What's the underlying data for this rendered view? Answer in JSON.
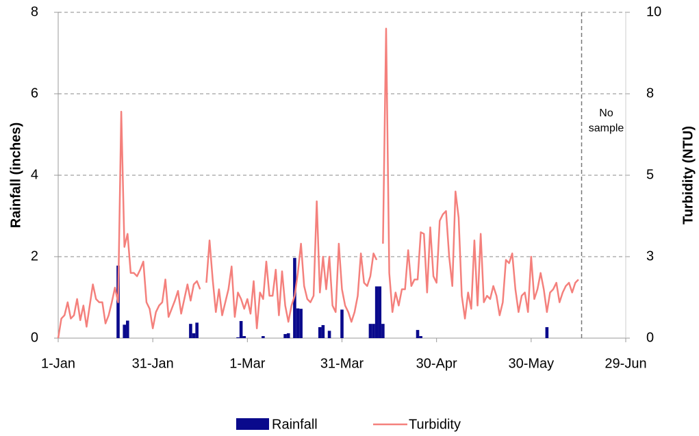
{
  "chart_data": {
    "type": "combo",
    "y_label": "Rainfall (inches)",
    "y2_label": "Turbidity (NTU)",
    "xlim": [
      0,
      180
    ],
    "xticks": [
      {
        "value": 0,
        "label": "1-Jan"
      },
      {
        "value": 30,
        "label": "31-Jan"
      },
      {
        "value": 60,
        "label": "1-Mar"
      },
      {
        "value": 90,
        "label": "31-Mar"
      },
      {
        "value": 120,
        "label": "30-Apr"
      },
      {
        "value": 150,
        "label": "30-May"
      },
      {
        "value": 180,
        "label": "29-Jun"
      }
    ],
    "ylim": [
      0,
      8
    ],
    "yticks": [
      0,
      2,
      4,
      6,
      8
    ],
    "y2lim": [
      0,
      10
    ],
    "y2ticks": [
      0,
      {
        "value": 2.5,
        "label": "3"
      },
      5,
      {
        "value": 7.5,
        "label": "8"
      },
      10
    ],
    "grid": true,
    "legend": "bottom",
    "annotation": {
      "x": 166,
      "lines": [
        "No",
        "sample"
      ]
    },
    "series": [
      {
        "name": "Rainfall",
        "type": "bar",
        "color": "#0a0a8c",
        "axis": "y",
        "x": [
          19,
          21,
          22,
          42,
          43,
          44,
          57,
          58,
          59,
          65,
          72,
          73,
          75,
          76,
          77,
          83,
          84,
          86,
          90,
          99,
          100,
          101,
          102,
          103,
          114,
          115,
          155
        ],
        "values": [
          1.78,
          0.33,
          0.43,
          0.35,
          0.12,
          0.38,
          0.02,
          0.42,
          0.05,
          0.05,
          0.1,
          0.12,
          1.97,
          0.73,
          0.72,
          0.27,
          0.32,
          0.18,
          0.7,
          0.35,
          0.35,
          1.27,
          1.27,
          0.35,
          0.2,
          0.05,
          0.27
        ]
      },
      {
        "name": "Turbidity",
        "type": "line",
        "color": "#f4807c",
        "axis": "y2",
        "x": [
          0,
          1,
          2,
          3,
          4,
          5,
          6,
          7,
          8,
          9,
          10,
          11,
          12,
          13,
          14,
          15,
          16,
          17,
          18,
          19,
          20,
          21,
          22,
          23,
          24,
          25,
          26,
          27,
          28,
          29,
          30,
          31,
          32,
          33,
          34,
          35,
          36,
          37,
          38,
          39,
          40,
          41,
          42,
          43,
          44,
          45,
          46,
          47,
          48,
          49,
          50,
          51,
          52,
          53,
          54,
          55,
          56,
          57,
          58,
          59,
          60,
          61,
          62,
          63,
          64,
          65,
          66,
          67,
          68,
          69,
          70,
          71,
          72,
          73,
          74,
          75,
          76,
          77,
          78,
          79,
          80,
          81,
          82,
          83,
          84,
          85,
          86,
          87,
          88,
          89,
          90,
          91,
          92,
          93,
          94,
          95,
          96,
          97,
          98,
          99,
          100,
          101,
          102,
          103,
          104,
          105,
          106,
          107,
          108,
          109,
          110,
          111,
          112,
          113,
          114,
          115,
          116,
          117,
          118,
          119,
          120,
          121,
          122,
          123,
          124,
          125,
          126,
          127,
          128,
          129,
          130,
          131,
          132,
          133,
          134,
          135,
          136,
          137,
          138,
          139,
          140,
          141,
          142,
          143,
          144,
          145,
          146,
          147,
          148,
          149,
          150,
          151,
          152,
          153,
          154,
          155,
          156,
          157,
          158,
          159,
          160,
          161,
          162,
          163,
          164,
          165
        ],
        "values": [
          0,
          0.6,
          0.7,
          1.1,
          0.6,
          0.7,
          1.2,
          0.55,
          1.0,
          0.35,
          1.0,
          1.65,
          1.2,
          1.1,
          1.1,
          0.45,
          0.7,
          1.1,
          1.55,
          1.1,
          6.95,
          2.8,
          3.2,
          2.0,
          2.0,
          1.9,
          2.1,
          2.35,
          1.1,
          0.9,
          0.3,
          0.8,
          1.0,
          1.1,
          1.8,
          0.65,
          0.9,
          1.15,
          1.45,
          0.75,
          1.2,
          1.65,
          1.15,
          1.65,
          1.75,
          1.5,
          null,
          1.7,
          3.0,
          1.8,
          0.8,
          1.5,
          0.7,
          1.1,
          1.5,
          2.2,
          0.65,
          1.4,
          1.2,
          0.9,
          1.2,
          0.75,
          1.75,
          0.3,
          1.4,
          1.2,
          2.35,
          1.3,
          1.3,
          2.1,
          0.7,
          2.05,
          1.0,
          0.5,
          1.0,
          1.3,
          2.0,
          2.9,
          1.6,
          1.2,
          1.1,
          1.3,
          4.2,
          1.4,
          2.5,
          1.5,
          2.5,
          1.0,
          0.8,
          2.9,
          1.5,
          1.0,
          0.8,
          0.5,
          0.8,
          1.3,
          2.6,
          1.7,
          1.6,
          1.9,
          2.6,
          2.4,
          null,
          2.9,
          9.5,
          2.0,
          0.8,
          1.4,
          1.0,
          1.5,
          1.5,
          2.7,
          1.6,
          1.8,
          1.8,
          3.25,
          3.2,
          1.4,
          3.4,
          1.9,
          1.7,
          3.6,
          3.8,
          3.9,
          2.5,
          1.6,
          4.5,
          3.7,
          1.3,
          0.6,
          1.4,
          0.9,
          3.0,
          1.0,
          3.2,
          1.1,
          1.3,
          1.2,
          1.6,
          1.3,
          0.7,
          1.1,
          2.4,
          2.3,
          2.6,
          1.5,
          0.8,
          1.3,
          1.4,
          0.8,
          2.5,
          1.2,
          1.5,
          2.0,
          1.5,
          0.8,
          1.4,
          1.5,
          1.7,
          1.1,
          1.4,
          1.6,
          1.7,
          1.4,
          1.7,
          1.8
        ]
      }
    ]
  }
}
